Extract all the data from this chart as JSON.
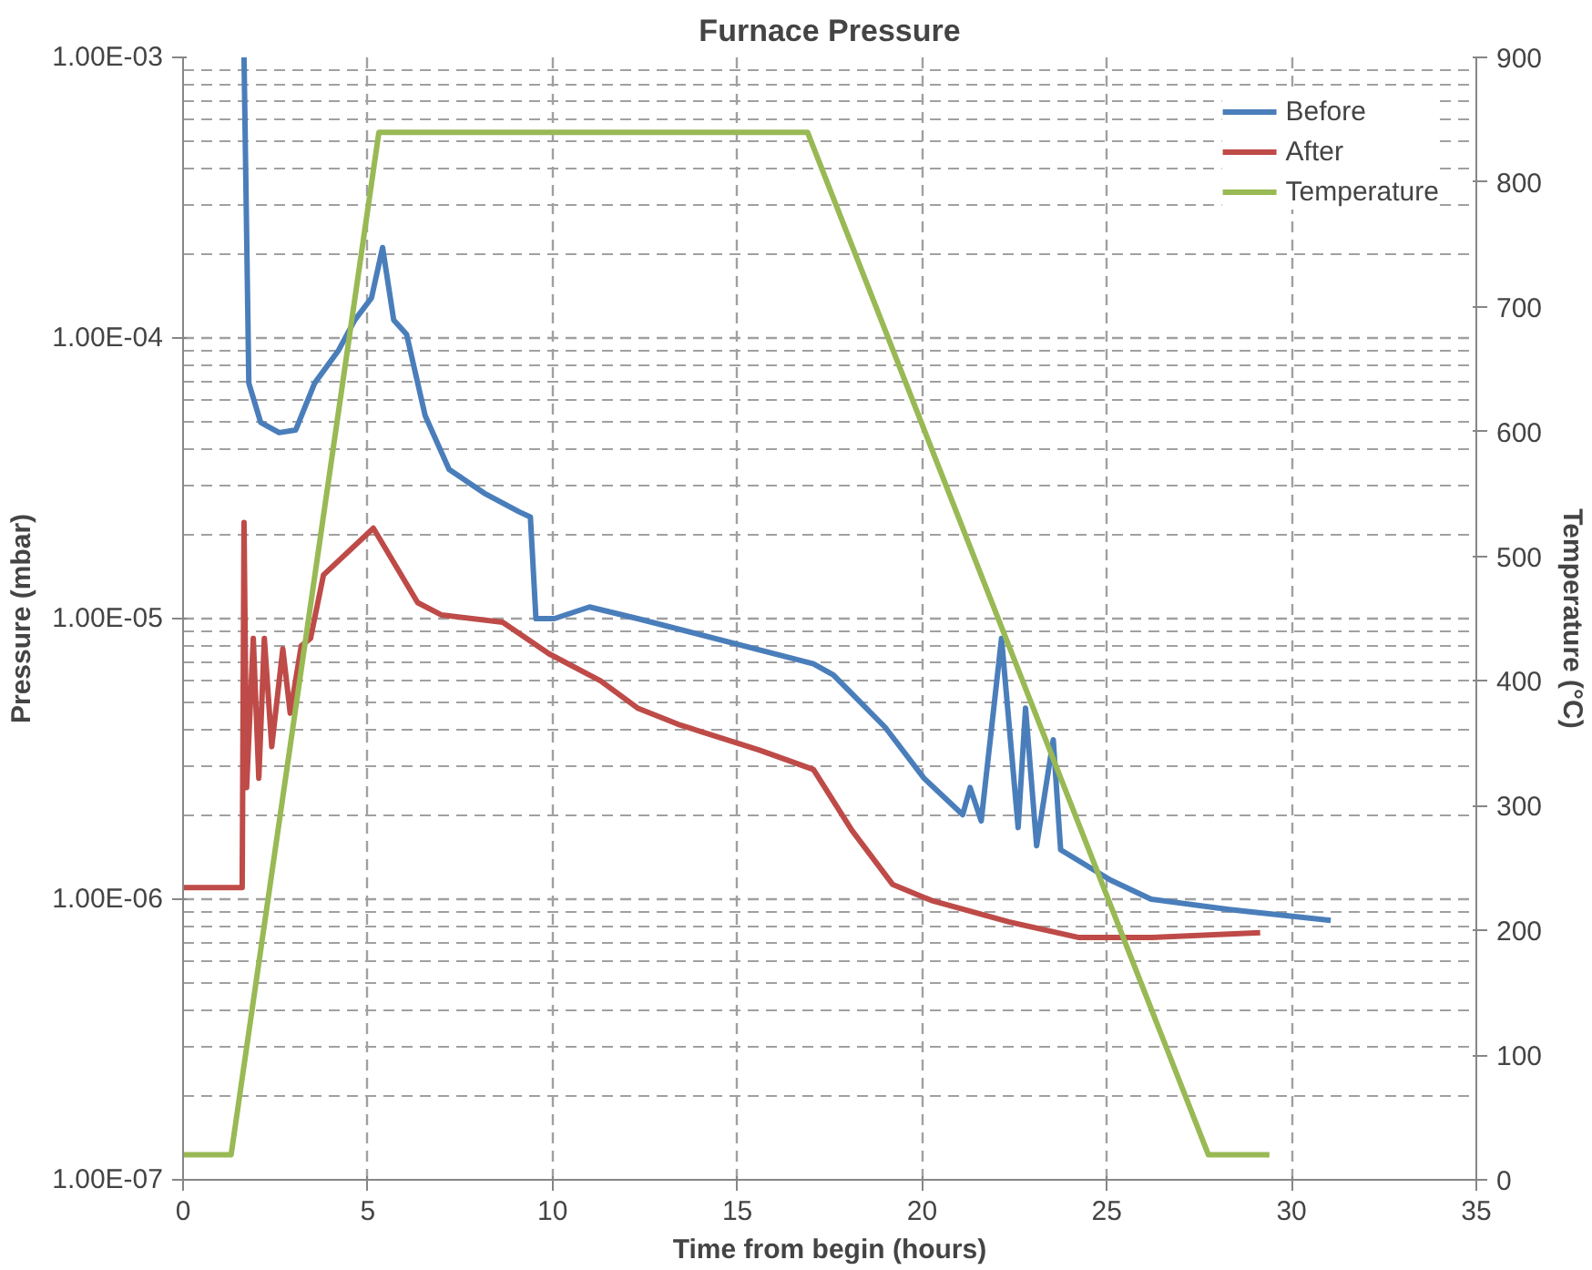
{
  "chart_data": {
    "type": "line",
    "title": "Furnace Pressure",
    "xlabel": "Time from begin (hours)",
    "ylabel": "Pressure (mbar)",
    "y2label": "Temperature (°C)",
    "log": "y",
    "grid": true,
    "legend": "top right",
    "marker": "none",
    "line_style": "solid",
    "xlim": [
      0,
      35
    ],
    "xticks": [
      0,
      5,
      10,
      15,
      20,
      25,
      30,
      35
    ],
    "ylim": [
      1e-07,
      0.001
    ],
    "yticks": [
      {
        "value": 1e-07,
        "label": "1.00E-07"
      },
      {
        "value": 1e-06,
        "label": "1.00E-06"
      },
      {
        "value": 1e-05,
        "label": "1.00E-05"
      },
      {
        "value": 0.0001,
        "label": "1.00E-04"
      },
      {
        "value": 0.001,
        "label": "1.00E-03"
      }
    ],
    "y2lim": [
      0,
      900
    ],
    "y2ticks": [
      0,
      100,
      200,
      300,
      400,
      500,
      600,
      700,
      800,
      900
    ],
    "series": [
      {
        "name": "Before",
        "color": "#4a7ebb",
        "x": [
          1.65,
          1.78,
          2.1,
          2.6,
          3.05,
          3.56,
          4.2,
          4.65,
          5.1,
          5.4,
          5.7,
          6.05,
          6.55,
          7.2,
          8.15,
          9.1,
          9.4,
          9.55,
          10.05,
          11.0,
          12.3,
          17.06,
          17.6,
          19.0,
          20.05,
          21.1,
          21.3,
          21.6,
          22.15,
          22.6,
          22.8,
          23.1,
          23.55,
          23.75,
          25.1,
          26.2,
          28.3,
          31.06
        ],
        "values": [
          0.001,
          6.9e-05,
          5e-05,
          4.6e-05,
          4.7e-05,
          6.9e-05,
          9e-05,
          0.000116,
          0.000139,
          0.00021,
          0.000116,
          0.000103,
          5.3e-05,
          3.4e-05,
          2.8e-05,
          2.4e-05,
          2.3e-05,
          1e-05,
          1e-05,
          1.1e-05,
          1e-05,
          6.9e-06,
          6.3e-06,
          4.1e-06,
          2.7e-06,
          2e-06,
          2.5e-06,
          1.9e-06,
          8.5e-06,
          1.8e-06,
          4.8e-06,
          1.55e-06,
          3.7e-06,
          1.5e-06,
          1.17e-06,
          1e-06,
          9.2e-07,
          8.4e-07
        ]
      },
      {
        "name": "After",
        "color": "#be4b48",
        "x": [
          0,
          1.6,
          1.65,
          1.72,
          1.9,
          2.05,
          2.2,
          2.4,
          2.7,
          2.9,
          3.2,
          3.45,
          3.8,
          5.15,
          6.35,
          7.0,
          8.65,
          9.9,
          11.3,
          12.3,
          13.4,
          15.6,
          17.06,
          18.1,
          19.2,
          20.25,
          22.35,
          24.25,
          26.2,
          29.15
        ],
        "values": [
          1.1e-06,
          1.1e-06,
          2.2e-05,
          2.5e-06,
          8.5e-06,
          2.7e-06,
          8.5e-06,
          3.5e-06,
          7.8e-06,
          4.6e-06,
          8e-06,
          8.5e-06,
          1.43e-05,
          2.1e-05,
          1.14e-05,
          1.03e-05,
          9.7e-06,
          7.5e-06,
          6e-06,
          4.8e-06,
          4.2e-06,
          3.4e-06,
          2.9e-06,
          1.76e-06,
          1.13e-06,
          9.9e-07,
          8.3e-07,
          7.3e-07,
          7.3e-07,
          7.6e-07
        ]
      },
      {
        "name": "Temperature",
        "color": "#98b954",
        "axis": "y2",
        "x": [
          0,
          1.3,
          5.3,
          16.9,
          27.75,
          29.4
        ],
        "values": [
          20,
          20,
          840,
          840,
          20,
          20
        ]
      }
    ]
  }
}
